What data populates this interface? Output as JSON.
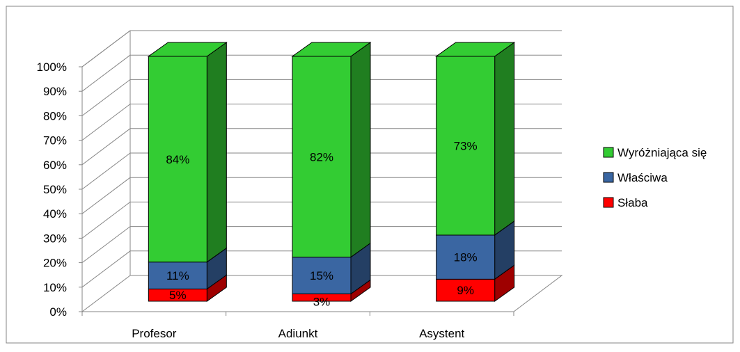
{
  "chart_data": {
    "type": "bar",
    "stacked": true,
    "three_d": true,
    "categories": [
      "Profesor",
      "Adiunkt",
      "Asystent"
    ],
    "series": [
      {
        "name": "Słaba",
        "values": [
          5,
          3,
          9
        ],
        "labels": [
          "5%",
          "3%",
          "9%"
        ],
        "color": "#ff0000"
      },
      {
        "name": "Właściwa",
        "values": [
          11,
          15,
          18
        ],
        "labels": [
          "11%",
          "15%",
          "18%"
        ],
        "color": "#3a66a2"
      },
      {
        "name": "Wyróżniająca się",
        "values": [
          84,
          82,
          73
        ],
        "labels": [
          "84%",
          "82%",
          "73%"
        ],
        "color": "#33cc33"
      }
    ],
    "y_ticks": [
      "0%",
      "10%",
      "20%",
      "30%",
      "40%",
      "50%",
      "60%",
      "70%",
      "80%",
      "90%",
      "100%"
    ],
    "ylim": [
      0,
      100
    ],
    "grid": true,
    "legend": {
      "position": "right",
      "items": [
        "Wyróżniająca się",
        "Właściwa",
        "Słaba"
      ]
    }
  }
}
